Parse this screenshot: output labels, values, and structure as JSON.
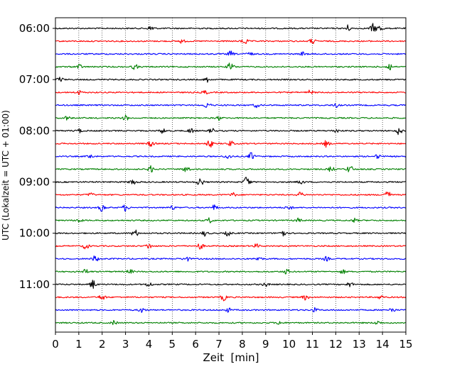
{
  "chart_data": {
    "type": "seismogram-helicorder",
    "title": "",
    "xlabel": "Zeit  [min]",
    "ylabel": "UTC (Lokalzeit = UTC + 01:00)",
    "xlim": [
      0,
      15
    ],
    "x_ticks": [
      0,
      1,
      2,
      3,
      4,
      5,
      6,
      7,
      8,
      9,
      10,
      11,
      12,
      13,
      14,
      15
    ],
    "x_tick_labels": [
      "0",
      "1",
      "2",
      "3",
      "4",
      "5",
      "6",
      "7",
      "8",
      "9",
      "10",
      "11",
      "12",
      "13",
      "14",
      "15"
    ],
    "grid": "vertical dotted at each minute",
    "trace_interval_min": 15,
    "trace_colors": [
      "#000000",
      "#ff0000",
      "#0000ff",
      "#008000"
    ],
    "colors": {
      "black": "#000000",
      "red": "#ff0000",
      "blue": "#0000ff",
      "green": "#008000"
    },
    "y_tick_labels": [
      "06:00",
      "07:00",
      "08:00",
      "09:00",
      "10:00",
      "11:00"
    ],
    "traces": [
      {
        "start": "06:00",
        "color": "black",
        "events": [
          [
            4.1,
            0.5
          ],
          [
            12.5,
            0.5
          ],
          [
            13.6,
            0.7
          ],
          [
            13.9,
            0.5
          ]
        ]
      },
      {
        "start": "06:15",
        "color": "red",
        "events": [
          [
            5.4,
            0.3
          ],
          [
            8.1,
            0.5
          ],
          [
            11.0,
            0.4
          ]
        ]
      },
      {
        "start": "06:30",
        "color": "blue",
        "events": [
          [
            7.5,
            0.4
          ],
          [
            8.3,
            0.3
          ],
          [
            10.6,
            0.3
          ]
        ]
      },
      {
        "start": "06:45",
        "color": "green",
        "events": [
          [
            1.0,
            0.4
          ],
          [
            3.4,
            0.4
          ],
          [
            7.5,
            0.7
          ],
          [
            14.3,
            0.6
          ]
        ]
      },
      {
        "start": "07:00",
        "color": "black",
        "events": [
          [
            0.2,
            0.4
          ],
          [
            6.5,
            0.4
          ]
        ]
      },
      {
        "start": "07:15",
        "color": "red",
        "events": [
          [
            1.0,
            0.3
          ],
          [
            6.4,
            0.3
          ],
          [
            10.9,
            0.3
          ]
        ]
      },
      {
        "start": "07:30",
        "color": "blue",
        "events": [
          [
            6.5,
            0.5
          ],
          [
            8.6,
            0.3
          ],
          [
            12.0,
            0.3
          ]
        ]
      },
      {
        "start": "07:45",
        "color": "green",
        "events": [
          [
            0.5,
            0.3
          ],
          [
            3.0,
            0.4
          ],
          [
            7.0,
            0.3
          ]
        ]
      },
      {
        "start": "08:00",
        "color": "black",
        "events": [
          [
            1.0,
            0.3
          ],
          [
            4.6,
            0.4
          ],
          [
            5.8,
            0.4
          ],
          [
            6.7,
            0.4
          ],
          [
            12.0,
            0.3
          ],
          [
            14.7,
            0.6
          ]
        ]
      },
      {
        "start": "08:15",
        "color": "red",
        "events": [
          [
            4.1,
            0.5
          ],
          [
            6.6,
            0.6
          ],
          [
            7.5,
            0.4
          ],
          [
            11.6,
            0.5
          ]
        ]
      },
      {
        "start": "08:30",
        "color": "blue",
        "events": [
          [
            1.5,
            0.3
          ],
          [
            7.4,
            0.4
          ],
          [
            8.4,
            0.6
          ],
          [
            13.8,
            0.3
          ]
        ]
      },
      {
        "start": "08:45",
        "color": "green",
        "events": [
          [
            4.1,
            0.5
          ],
          [
            5.6,
            0.6
          ],
          [
            11.8,
            0.4
          ],
          [
            12.6,
            0.6
          ]
        ]
      },
      {
        "start": "09:00",
        "color": "black",
        "events": [
          [
            3.3,
            0.5
          ],
          [
            6.2,
            0.7
          ],
          [
            8.2,
            1.0
          ],
          [
            10.5,
            0.4
          ]
        ]
      },
      {
        "start": "09:15",
        "color": "red",
        "events": [
          [
            1.5,
            0.3
          ],
          [
            7.6,
            0.3
          ],
          [
            10.5,
            0.4
          ],
          [
            14.2,
            0.8
          ]
        ]
      },
      {
        "start": "09:30",
        "color": "blue",
        "events": [
          [
            2.0,
            0.6
          ],
          [
            3.0,
            0.5
          ],
          [
            5.0,
            0.3
          ],
          [
            6.8,
            0.4
          ],
          [
            10.0,
            0.4
          ]
        ]
      },
      {
        "start": "09:45",
        "color": "green",
        "events": [
          [
            1.0,
            0.3
          ],
          [
            6.6,
            0.4
          ],
          [
            10.4,
            0.3
          ],
          [
            12.8,
            0.3
          ]
        ]
      },
      {
        "start": "10:00",
        "color": "black",
        "events": [
          [
            3.4,
            0.6
          ],
          [
            6.4,
            0.4
          ],
          [
            7.4,
            0.4
          ],
          [
            9.7,
            0.7
          ]
        ]
      },
      {
        "start": "10:15",
        "color": "red",
        "events": [
          [
            1.3,
            0.5
          ],
          [
            4.0,
            0.4
          ],
          [
            6.2,
            0.5
          ],
          [
            8.6,
            0.3
          ]
        ]
      },
      {
        "start": "10:30",
        "color": "blue",
        "events": [
          [
            1.7,
            0.5
          ],
          [
            5.6,
            0.4
          ],
          [
            8.7,
            0.4
          ],
          [
            11.6,
            0.3
          ]
        ]
      },
      {
        "start": "10:45",
        "color": "green",
        "events": [
          [
            1.3,
            0.4
          ],
          [
            3.2,
            0.3
          ],
          [
            9.9,
            0.4
          ],
          [
            12.3,
            0.3
          ]
        ]
      },
      {
        "start": "11:00",
        "color": "black",
        "events": [
          [
            1.6,
            0.7
          ],
          [
            4.0,
            0.4
          ],
          [
            9.0,
            0.3
          ],
          [
            12.6,
            0.4
          ]
        ]
      },
      {
        "start": "11:15",
        "color": "red",
        "events": [
          [
            2.0,
            0.5
          ],
          [
            7.2,
            0.5
          ],
          [
            10.7,
            0.4
          ],
          [
            13.9,
            0.3
          ]
        ]
      },
      {
        "start": "11:30",
        "color": "blue",
        "events": [
          [
            3.7,
            0.4
          ],
          [
            7.4,
            0.3
          ],
          [
            11.1,
            0.3
          ],
          [
            14.4,
            0.4
          ]
        ]
      },
      {
        "start": "11:45",
        "color": "green",
        "events": [
          [
            2.5,
            0.3
          ],
          [
            9.6,
            0.3
          ],
          [
            13.8,
            0.3
          ]
        ]
      }
    ]
  }
}
